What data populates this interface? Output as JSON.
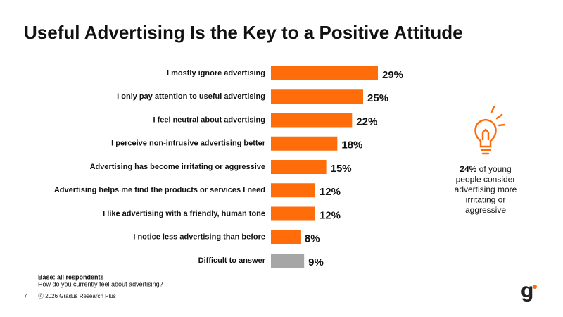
{
  "chart_data": {
    "type": "bar",
    "orientation": "horizontal",
    "title": "Useful Advertising Is the Key to a Positive Attitude",
    "categories": [
      "I mostly ignore advertising",
      "I only pay attention to useful advertising",
      "I feel neutral about advertising",
      "I perceive non-intrusive advertising better",
      "Advertising has become irritating or aggressive",
      "Advertising helps me find the products or services I need",
      "I like advertising with a friendly, human tone",
      "I notice less advertising than before",
      "Difficult to answer"
    ],
    "values": [
      29,
      25,
      22,
      18,
      15,
      12,
      12,
      8,
      9
    ],
    "value_labels": [
      "29%",
      "25%",
      "22%",
      "18%",
      "15%",
      "12%",
      "12%",
      "8%",
      "9%"
    ],
    "colors": [
      "#ff6d0a",
      "#ff6d0a",
      "#ff6d0a",
      "#ff6d0a",
      "#ff6d0a",
      "#ff6d0a",
      "#ff6d0a",
      "#ff6d0a",
      "#a6a6a6"
    ],
    "callout": {
      "highlight": "24%",
      "lines": [
        "of young",
        "people consider",
        "advertising more",
        "irritating or",
        "aggressive"
      ]
    },
    "base": "Base: all respondents",
    "question": "How do you currently feel about advertising?",
    "page_number": "7",
    "copyright": "ⓒ 2026 Gradus Research Plus",
    "logo": "g"
  }
}
